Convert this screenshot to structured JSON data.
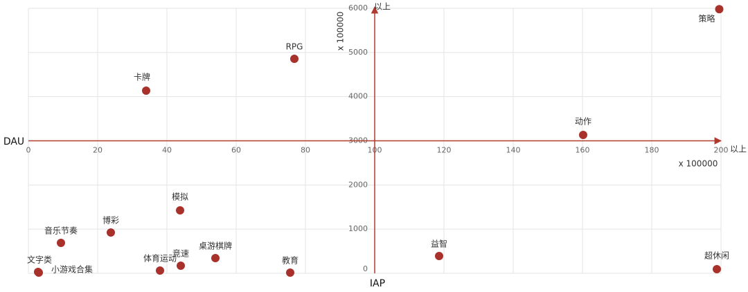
{
  "chart_data": {
    "type": "scatter",
    "x_label": "IAP",
    "y_label": "DAU",
    "x_unit": "x 100000",
    "y_unit": "x 100000",
    "x_end_label": "以上",
    "y_end_label": "以上",
    "color": "#a8322b",
    "axis_color": "#b03a2e",
    "grid": true,
    "xlim": [
      0,
      200
    ],
    "ylim": [
      0,
      6000
    ],
    "xticks": [
      0,
      20,
      40,
      60,
      80,
      100,
      120,
      140,
      160,
      180,
      200
    ],
    "yticks": [
      0,
      1000,
      2000,
      3000,
      4000,
      5000,
      6000
    ],
    "labels": [
      "策略",
      "RPG",
      "卡牌",
      "动作",
      "模拟",
      "博彩",
      "音乐节奏",
      "桌游棋牌",
      "竞速",
      "体育运动",
      "教育",
      "文字类",
      "小游戏合集",
      "益智",
      "超休闲"
    ],
    "x": [
      199.5,
      76.8,
      34,
      160.2,
      43.8,
      23.8,
      9.4,
      54,
      44,
      38,
      75.6,
      2.8,
      3.0,
      118.6,
      198.8
    ],
    "y": [
      5980,
      4857,
      4136,
      3133,
      1426,
      924,
      689,
      345,
      172,
      63,
      16,
      31,
      16,
      392,
      94
    ]
  }
}
